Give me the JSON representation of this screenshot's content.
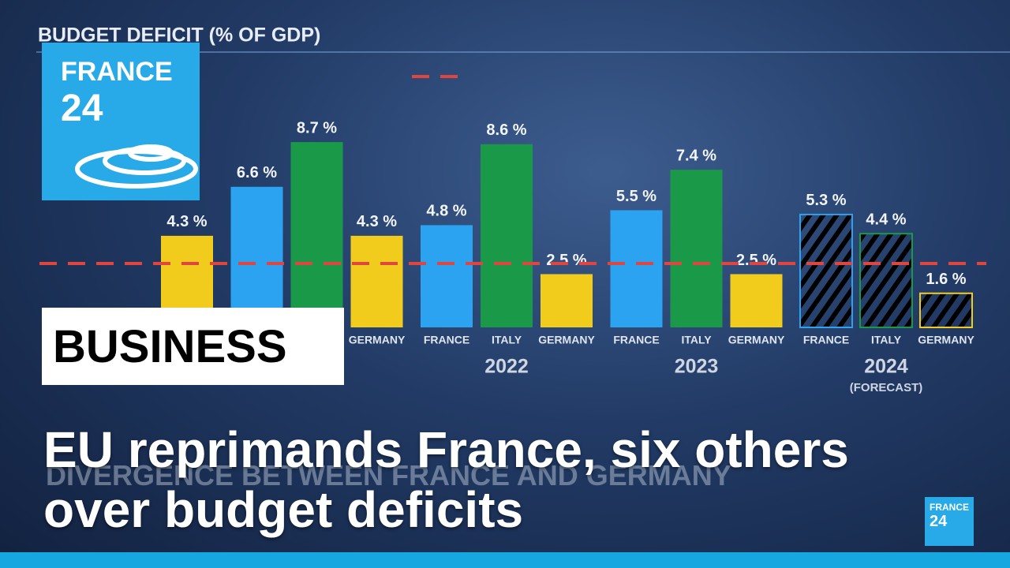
{
  "chart_data": {
    "type": "bar",
    "title": "BUDGET DEFICIT (% OF GDP)",
    "categories": [
      null,
      null,
      null,
      null,
      null,
      "GERMANY",
      "FRANCE",
      "ITALY",
      "GERMANY",
      "FRANCE",
      "ITALY",
      "GERMANY",
      "FRANCE",
      "ITALY",
      "GERMANY"
    ],
    "values": [
      null,
      null,
      4.3,
      6.6,
      8.7,
      4.3,
      4.8,
      8.6,
      2.5,
      5.5,
      7.4,
      2.5,
      5.3,
      4.4,
      1.6
    ],
    "value_labels": [
      null,
      null,
      "4.3 %",
      "6.6 %",
      "8.7 %",
      "4.3 %",
      "4.8 %",
      "8.6 %",
      "2.5 %",
      "5.5 %",
      "7.4 %",
      "2.5 %",
      "5.3 %",
      "4.4 %",
      "1.6 %"
    ],
    "colors": [
      "#2ba3f0",
      "#1a9a48",
      "#f2cc1c",
      "#2ba3f0",
      "#1a9a48",
      "#f2cc1c",
      "#2ba3f0",
      "#1a9a48",
      "#f2cc1c",
      "#2ba3f0",
      "#1a9a48",
      "#f2cc1c",
      "#2ba3f0",
      "#1a9a48",
      "#f2cc1c"
    ],
    "hatched": [
      false,
      false,
      false,
      false,
      false,
      false,
      false,
      false,
      false,
      false,
      false,
      false,
      true,
      true,
      true
    ],
    "group_labels": [
      null,
      null,
      "2022",
      "2023",
      "2024"
    ],
    "forecast_note": "(FORECAST)",
    "reference_line": 3,
    "reference_color": "#e0463f",
    "ylim": [
      0,
      15
    ]
  },
  "logo": {
    "line1": "FRANCE",
    "line2": "24"
  },
  "section": "BUSINESS",
  "background_caption": "DIVERGENCE BETWEEN FRANCE AND GERMANY",
  "headline": [
    "EU reprimands France, six others",
    "over budget deficits"
  ],
  "corner_logo": {
    "line1": "FRANCE",
    "line2": "24"
  }
}
